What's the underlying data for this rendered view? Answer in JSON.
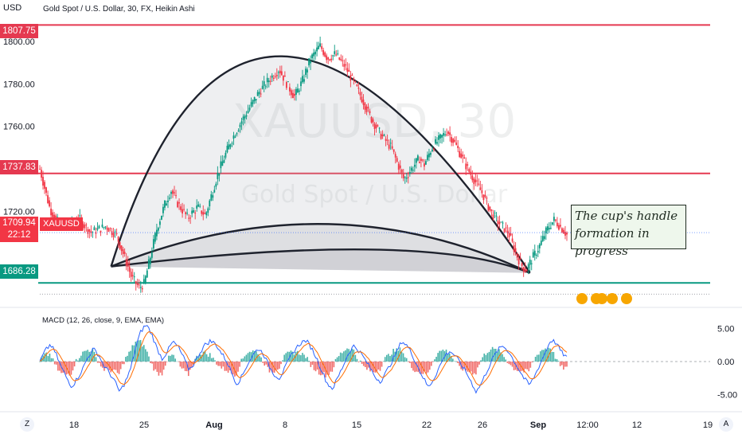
{
  "header": {
    "currency": "USD",
    "symbol_info": "Gold Spot / U.S. Dollar, 30, FX, Heikin Ashi"
  },
  "watermark": {
    "ticker": "XAUUSD, 30",
    "name": "Gold Spot / U.S. Dollar"
  },
  "price_levels": [
    {
      "label": "1807.75",
      "value": 1807.75,
      "color": "#e53950"
    },
    {
      "label": "1737.83",
      "value": 1737.83,
      "color": "#e53950"
    },
    {
      "label": "1686.28",
      "value": 1686.28,
      "color": "#089981"
    }
  ],
  "current_price": {
    "value": "1709.94",
    "symbol": "XAUUSD",
    "countdown": "22:12",
    "color": "#f23645"
  },
  "annotation": {
    "line1": "The cup's handle",
    "line2": "formation in progress"
  },
  "macd": {
    "label": "MACD (12, 26, close, 9, EMA, EMA)"
  },
  "bottom": {
    "left_button": "Z",
    "right_button": "A"
  },
  "chart_data": [
    {
      "type": "candlestick",
      "style": "Heikin Ashi",
      "title": "Gold Spot / U.S. Dollar, 30, FX, Heikin Ashi",
      "ylim": [
        1677,
        1812
      ],
      "y_ticks": [
        1720,
        1740,
        1760,
        1780,
        1800
      ],
      "y_tick_labels": [
        "1720.00",
        "1740.00",
        "1760.00",
        "1780.00",
        "1800.00"
      ],
      "x_tick_labels": [
        "18",
        "25",
        "Aug",
        "8",
        "15",
        "22",
        "26",
        "Sep",
        "12:00",
        "12",
        "19"
      ],
      "trace": [
        [
          0,
          1740
        ],
        [
          8,
          1721
        ],
        [
          14,
          1715
        ],
        [
          22,
          1713
        ],
        [
          30,
          1717
        ],
        [
          40,
          1710
        ],
        [
          52,
          1713
        ],
        [
          60,
          1709
        ],
        [
          68,
          1696
        ],
        [
          72,
          1689
        ],
        [
          78,
          1684
        ],
        [
          82,
          1686
        ],
        [
          92,
          1712
        ],
        [
          98,
          1723
        ],
        [
          103,
          1730
        ],
        [
          108,
          1724
        ],
        [
          116,
          1717
        ],
        [
          124,
          1722
        ],
        [
          130,
          1718
        ],
        [
          140,
          1738
        ],
        [
          150,
          1753
        ],
        [
          158,
          1762
        ],
        [
          166,
          1770
        ],
        [
          172,
          1776
        ],
        [
          180,
          1782
        ],
        [
          188,
          1787
        ],
        [
          194,
          1780
        ],
        [
          200,
          1774
        ],
        [
          206,
          1781
        ],
        [
          212,
          1791
        ],
        [
          220,
          1798
        ],
        [
          226,
          1792
        ],
        [
          232,
          1794
        ],
        [
          240,
          1788
        ],
        [
          248,
          1779
        ],
        [
          254,
          1772
        ],
        [
          260,
          1764
        ],
        [
          268,
          1756
        ],
        [
          276,
          1750
        ],
        [
          282,
          1741
        ],
        [
          286,
          1735
        ],
        [
          292,
          1740
        ],
        [
          298,
          1745
        ],
        [
          302,
          1742
        ],
        [
          308,
          1750
        ],
        [
          314,
          1754
        ],
        [
          320,
          1758
        ],
        [
          326,
          1752
        ],
        [
          332,
          1745
        ],
        [
          336,
          1740
        ],
        [
          340,
          1736
        ],
        [
          348,
          1728
        ],
        [
          354,
          1720
        ],
        [
          360,
          1715
        ],
        [
          368,
          1710
        ],
        [
          374,
          1700
        ],
        [
          378,
          1695
        ],
        [
          382,
          1692
        ],
        [
          386,
          1697
        ],
        [
          392,
          1703
        ],
        [
          398,
          1711
        ],
        [
          404,
          1716
        ],
        [
          410,
          1712
        ],
        [
          414,
          1709
        ]
      ],
      "patterns": [
        {
          "name": "cup",
          "from": [
            56,
            1694
          ],
          "peak": [
            190,
            1793
          ],
          "to": [
            385,
            1691
          ]
        },
        {
          "name": "handle-upper",
          "from": [
            56,
            1694
          ],
          "peak": [
            224,
            1714
          ],
          "to": [
            385,
            1691
          ]
        },
        {
          "name": "handle-lower",
          "from": [
            56,
            1694
          ],
          "peak": [
            260,
            1702
          ],
          "to": [
            385,
            1691
          ]
        }
      ]
    },
    {
      "type": "histogram+line",
      "title": "MACD (12, 26, close, 9, EMA, EMA)",
      "ylim": [
        -6.5,
        6.5
      ],
      "y_ticks": [
        5,
        0,
        -5
      ],
      "y_tick_labels": [
        "5.00",
        "0.00",
        "-5.00"
      ],
      "macd_line": [
        0,
        1.6,
        2.6,
        1.2,
        -0.8,
        -2.4,
        -3.8,
        -2.6,
        -1.2,
        0.6,
        1.9,
        1.1,
        -0.6,
        -1.6,
        -2.9,
        -4.6,
        -3.2,
        -1.3,
        2.1,
        4.6,
        5.6,
        4.2,
        2.0,
        0.4,
        1.6,
        3.0,
        2.2,
        0.6,
        -1.2,
        -0.3,
        1.3,
        2.5,
        3.1,
        2.7,
        1.4,
        0.2,
        -1.6,
        -3.4,
        -2.2,
        -0.4,
        0.9,
        2.0,
        1.2,
        -0.6,
        -1.9,
        -2.5,
        -1.1,
        0.6,
        1.9,
        2.8,
        3.2,
        2.1,
        0.5,
        -1.4,
        -3.3,
        -4.1,
        -2.4,
        -0.6,
        1.3,
        2.4,
        1.6,
        0.4,
        -0.9,
        -2.3,
        -3.0,
        -1.7,
        -0.2,
        1.4,
        3.1,
        2.4,
        1.0,
        -0.8,
        -2.4,
        -3.9,
        -2.6,
        -0.9,
        0.8,
        1.6,
        0.9,
        -0.3,
        -1.5,
        -3.0,
        -4.6,
        -3.2,
        -1.4,
        0.3,
        1.7,
        2.4,
        1.6,
        0.2,
        -1.2,
        -2.6,
        -3.6,
        -2.1,
        -0.3,
        1.5,
        3.3,
        2.8,
        1.4,
        0.6
      ]
    }
  ]
}
